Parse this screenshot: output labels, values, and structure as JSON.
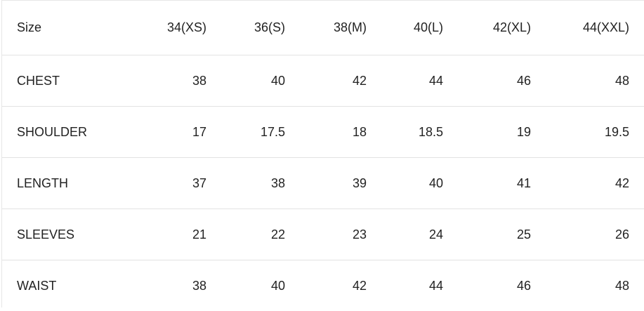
{
  "table": {
    "headers": [
      "Size",
      "34(XS)",
      "36(S)",
      "38(M)",
      "40(L)",
      "42(XL)",
      "44(XXL)"
    ],
    "rows": [
      {
        "label": "CHEST",
        "values": [
          "38",
          "40",
          "42",
          "44",
          "46",
          "48"
        ]
      },
      {
        "label": "SHOULDER",
        "values": [
          "17",
          "17.5",
          "18",
          "18.5",
          "19",
          "19.5"
        ]
      },
      {
        "label": "LENGTH",
        "values": [
          "37",
          "38",
          "39",
          "40",
          "41",
          "42"
        ]
      },
      {
        "label": "SLEEVES",
        "values": [
          "21",
          "22",
          "23",
          "24",
          "25",
          "26"
        ]
      },
      {
        "label": "WAIST",
        "values": [
          "38",
          "40",
          "42",
          "44",
          "46",
          "48"
        ]
      }
    ]
  }
}
